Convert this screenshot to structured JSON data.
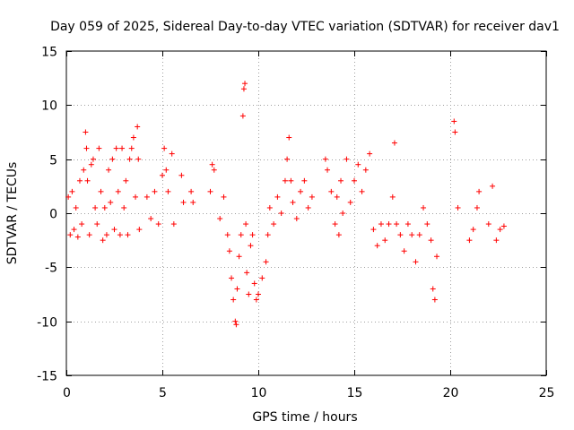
{
  "chart_data": {
    "type": "scatter",
    "title": "Day 059 of 2025, Sidereal Day-to-day VTEC variation (SDTVAR) for receiver dav1",
    "xlabel": "GPS time / hours",
    "ylabel": "SDTVAR / TECUs",
    "xlim": [
      0,
      25
    ],
    "ylim": [
      -15,
      15
    ],
    "xticks": [
      0,
      5,
      10,
      15,
      20,
      25
    ],
    "yticks": [
      -15,
      -10,
      -5,
      0,
      5,
      10,
      15
    ],
    "xtick_labels": [
      "0",
      "5",
      "10",
      "15",
      "20",
      "25"
    ],
    "ytick_labels": [
      "-15",
      "-10",
      "-5",
      "0",
      "5",
      "10",
      "15"
    ],
    "grid": true,
    "marker": "+",
    "color": "#ff0000",
    "series": [
      {
        "name": "SDTVAR",
        "points": [
          [
            0.1,
            1.5
          ],
          [
            0.2,
            -2.0
          ],
          [
            0.3,
            2.0
          ],
          [
            0.4,
            -1.5
          ],
          [
            0.5,
            0.5
          ],
          [
            0.6,
            -2.2
          ],
          [
            0.7,
            3.0
          ],
          [
            0.8,
            -1.0
          ],
          [
            0.9,
            4.0
          ],
          [
            1.0,
            7.5
          ],
          [
            1.05,
            6.0
          ],
          [
            1.1,
            3.0
          ],
          [
            1.2,
            -2.0
          ],
          [
            1.3,
            4.5
          ],
          [
            1.4,
            5.0
          ],
          [
            1.5,
            0.5
          ],
          [
            1.6,
            -1.0
          ],
          [
            1.7,
            6.0
          ],
          [
            1.8,
            2.0
          ],
          [
            1.9,
            -2.5
          ],
          [
            2.0,
            0.5
          ],
          [
            2.1,
            -2.0
          ],
          [
            2.2,
            4.0
          ],
          [
            2.3,
            1.0
          ],
          [
            2.4,
            5.0
          ],
          [
            2.5,
            -1.5
          ],
          [
            2.6,
            6.0
          ],
          [
            2.7,
            2.0
          ],
          [
            2.8,
            -2.0
          ],
          [
            2.9,
            6.0
          ],
          [
            3.0,
            0.5
          ],
          [
            3.1,
            3.0
          ],
          [
            3.2,
            -2.0
          ],
          [
            3.3,
            5.0
          ],
          [
            3.4,
            6.0
          ],
          [
            3.5,
            7.0
          ],
          [
            3.6,
            1.5
          ],
          [
            3.7,
            8.0
          ],
          [
            3.75,
            5.0
          ],
          [
            3.8,
            -1.5
          ],
          [
            4.2,
            1.5
          ],
          [
            4.4,
            -0.5
          ],
          [
            4.6,
            2.0
          ],
          [
            4.8,
            -1.0
          ],
          [
            5.0,
            3.5
          ],
          [
            5.1,
            6.0
          ],
          [
            5.2,
            4.0
          ],
          [
            5.3,
            2.0
          ],
          [
            5.5,
            5.5
          ],
          [
            5.6,
            -1.0
          ],
          [
            6.0,
            3.5
          ],
          [
            6.1,
            1.0
          ],
          [
            6.5,
            2.0
          ],
          [
            6.6,
            1.0
          ],
          [
            7.5,
            2.0
          ],
          [
            7.6,
            4.5
          ],
          [
            7.7,
            4.0
          ],
          [
            8.0,
            -0.5
          ],
          [
            8.2,
            1.5
          ],
          [
            8.4,
            -2.0
          ],
          [
            8.5,
            -3.5
          ],
          [
            8.6,
            -6.0
          ],
          [
            8.7,
            -8.0
          ],
          [
            8.8,
            -10.0
          ],
          [
            8.85,
            -10.3
          ],
          [
            8.9,
            -7.0
          ],
          [
            9.0,
            -4.0
          ],
          [
            9.1,
            -2.0
          ],
          [
            9.2,
            9.0
          ],
          [
            9.25,
            11.5
          ],
          [
            9.3,
            12.0
          ],
          [
            9.35,
            -1.0
          ],
          [
            9.4,
            -5.5
          ],
          [
            9.5,
            -7.5
          ],
          [
            9.6,
            -3.0
          ],
          [
            9.7,
            -2.0
          ],
          [
            9.8,
            -6.5
          ],
          [
            9.9,
            -8.0
          ],
          [
            10.0,
            -7.5
          ],
          [
            10.2,
            -6.0
          ],
          [
            10.4,
            -4.5
          ],
          [
            10.5,
            -2.0
          ],
          [
            10.6,
            0.5
          ],
          [
            10.8,
            -1.0
          ],
          [
            11.0,
            1.5
          ],
          [
            11.2,
            0.0
          ],
          [
            11.4,
            3.0
          ],
          [
            11.5,
            5.0
          ],
          [
            11.6,
            7.0
          ],
          [
            11.7,
            3.0
          ],
          [
            11.8,
            1.0
          ],
          [
            12.0,
            -0.5
          ],
          [
            12.2,
            2.0
          ],
          [
            12.4,
            3.0
          ],
          [
            12.6,
            0.5
          ],
          [
            12.8,
            1.5
          ],
          [
            13.5,
            5.0
          ],
          [
            13.6,
            4.0
          ],
          [
            13.8,
            2.0
          ],
          [
            14.0,
            -1.0
          ],
          [
            14.1,
            1.5
          ],
          [
            14.2,
            -2.0
          ],
          [
            14.3,
            3.0
          ],
          [
            14.4,
            0.0
          ],
          [
            14.6,
            5.0
          ],
          [
            14.8,
            1.0
          ],
          [
            15.0,
            3.0
          ],
          [
            15.2,
            4.5
          ],
          [
            15.4,
            2.0
          ],
          [
            15.6,
            4.0
          ],
          [
            15.8,
            5.5
          ],
          [
            16.0,
            -1.5
          ],
          [
            16.2,
            -3.0
          ],
          [
            16.4,
            -1.0
          ],
          [
            16.6,
            -2.5
          ],
          [
            16.8,
            -1.0
          ],
          [
            17.0,
            1.5
          ],
          [
            17.1,
            6.5
          ],
          [
            17.2,
            -1.0
          ],
          [
            17.4,
            -2.0
          ],
          [
            17.6,
            -3.5
          ],
          [
            17.8,
            -1.0
          ],
          [
            18.0,
            -2.0
          ],
          [
            18.2,
            -4.5
          ],
          [
            18.4,
            -2.0
          ],
          [
            18.6,
            0.5
          ],
          [
            18.8,
            -1.0
          ],
          [
            19.0,
            -2.5
          ],
          [
            19.1,
            -7.0
          ],
          [
            19.2,
            -8.0
          ],
          [
            19.3,
            -4.0
          ],
          [
            20.2,
            8.5
          ],
          [
            20.25,
            7.5
          ],
          [
            20.4,
            0.5
          ],
          [
            21.0,
            -2.5
          ],
          [
            21.2,
            -1.5
          ],
          [
            21.4,
            0.5
          ],
          [
            21.5,
            2.0
          ],
          [
            22.0,
            -1.0
          ],
          [
            22.2,
            2.5
          ],
          [
            22.4,
            -2.5
          ],
          [
            22.6,
            -1.5
          ],
          [
            22.8,
            -1.2
          ]
        ]
      }
    ]
  }
}
